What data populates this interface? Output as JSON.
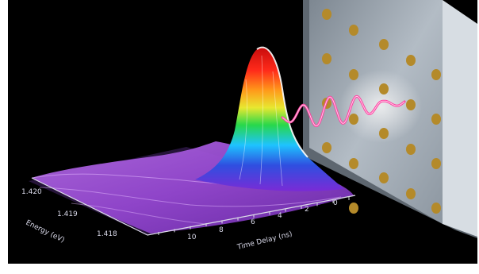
{
  "figure": {
    "energy_axis": {
      "label": "Energy (eV)",
      "ticks": [
        "1.420",
        "1.419",
        "1.418"
      ]
    },
    "time_axis": {
      "label": "Time Delay (ns)",
      "ticks": [
        "10",
        "8",
        "6",
        "4",
        "2",
        "0"
      ]
    },
    "colors": {
      "background": "#000000",
      "wave": "#ff3fa0",
      "panel": "#9aa3ad",
      "dots": "#b48a2a"
    },
    "peak_colormap": [
      "#7a2bd6",
      "#2f4fe0",
      "#1ec3ff",
      "#28d84a",
      "#e8e830",
      "#ff9a1a",
      "#ff2a1a",
      "#c80c0c"
    ]
  }
}
